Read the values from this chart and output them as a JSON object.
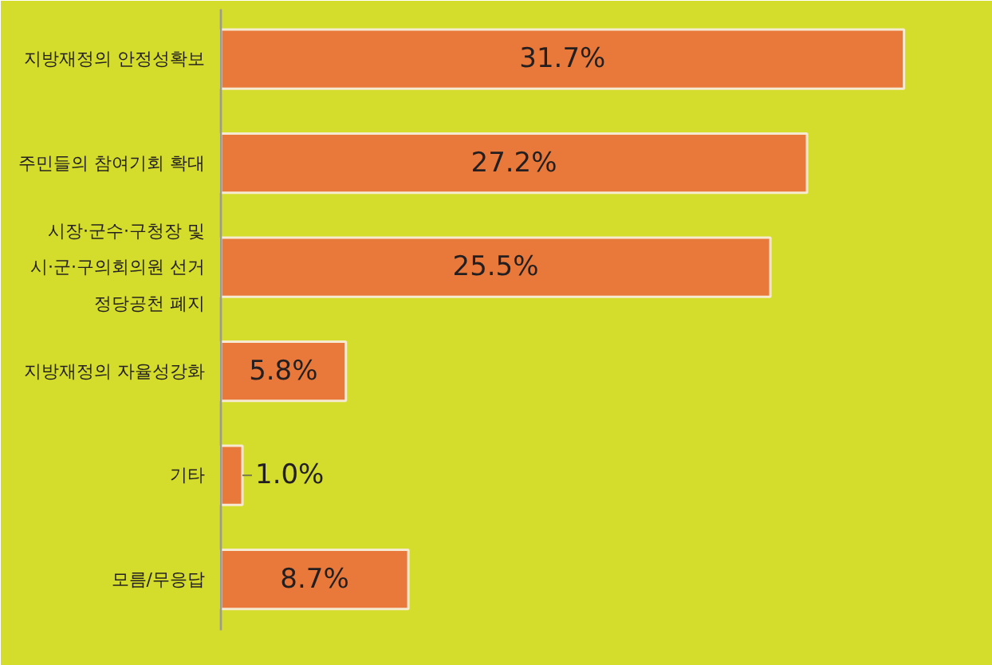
{
  "chart_data": {
    "type": "bar",
    "orientation": "horizontal",
    "categories": [
      "지방재정의 안정성확보",
      "주민들의 참여기회 확대",
      "시장·군수·구청장 및\n시·군·구의회의원 선거\n정당공천 폐지",
      "지방재정의 자율성강화",
      "기타",
      "모름/무응답"
    ],
    "values": [
      31.7,
      27.2,
      25.5,
      5.8,
      1.0,
      8.7
    ],
    "value_labels": [
      "31.7%",
      "27.2%",
      "25.5%",
      "5.8%",
      "1.0%",
      "8.7%"
    ],
    "color": "#e8793a",
    "tick_labels": "y"
  }
}
